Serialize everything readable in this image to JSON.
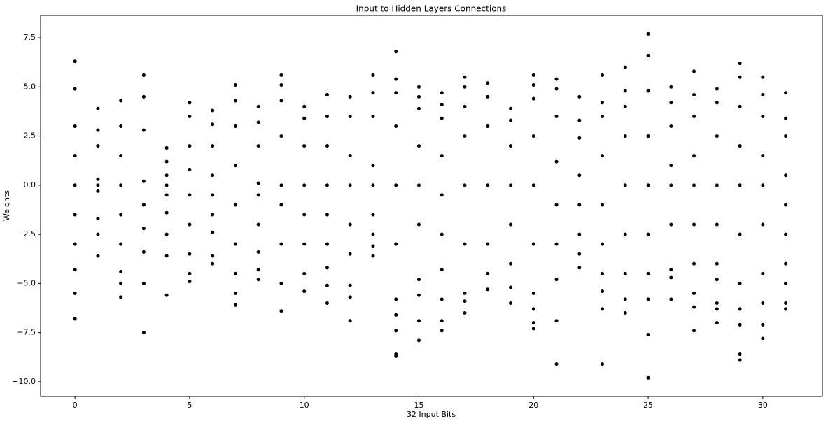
{
  "chart_data": {
    "type": "scatter",
    "title": "Input to Hidden Layers Connections",
    "xlabel": "32 Input Bits",
    "ylabel": "Weights",
    "color": "#000000",
    "xlim": [
      -1.5,
      32.6
    ],
    "ylim": [
      -10.75,
      8.64
    ],
    "xticks": [
      0,
      5,
      10,
      15,
      20,
      25,
      30
    ],
    "yticks": [
      {
        "value": -10,
        "label": "−10.0"
      },
      {
        "value": -7.5,
        "label": "−7.5"
      },
      {
        "value": -5,
        "label": "−5.0"
      },
      {
        "value": -2.5,
        "label": "−2.5"
      },
      {
        "value": 0,
        "label": "0.0"
      },
      {
        "value": 2.5,
        "label": "2.5"
      },
      {
        "value": 5,
        "label": "5.0"
      },
      {
        "value": 7.5,
        "label": "7.5"
      }
    ],
    "series": [
      {
        "x": 0,
        "values": [
          6.3,
          4.9,
          3.0,
          1.5,
          0,
          -1.5,
          -3,
          -4.3,
          -5.5,
          -6.8
        ]
      },
      {
        "x": 1,
        "values": [
          3.9,
          2.8,
          2.0,
          0.3,
          0,
          -0.3,
          -1.7,
          -2.5,
          -3.6
        ]
      },
      {
        "x": 2,
        "values": [
          4.3,
          3.0,
          1.5,
          0,
          -1.5,
          -3,
          -4.4,
          -5.0,
          -5.7
        ]
      },
      {
        "x": 3,
        "values": [
          5.6,
          4.5,
          2.8,
          0.2,
          -1,
          -2.2,
          -3.4,
          -5,
          -7.5
        ]
      },
      {
        "x": 4,
        "values": [
          1.9,
          1.2,
          0.5,
          0,
          -0.5,
          -1.4,
          -2.5,
          -3.6,
          -5.6
        ]
      },
      {
        "x": 5,
        "values": [
          4.2,
          3.5,
          2,
          0.8,
          -0.5,
          -2,
          -3.5,
          -4.5,
          -4.9
        ]
      },
      {
        "x": 6,
        "values": [
          3.8,
          3.1,
          2,
          0.5,
          -0.5,
          -1.5,
          -2.4,
          -3.6,
          -4
        ]
      },
      {
        "x": 7,
        "values": [
          5.1,
          4.3,
          3,
          1,
          -1,
          -3,
          -4.5,
          -5.5,
          -6.1
        ]
      },
      {
        "x": 8,
        "values": [
          4.0,
          3.2,
          2,
          0.1,
          -0.5,
          -2,
          -3.4,
          -4.3,
          -4.8
        ]
      },
      {
        "x": 9,
        "values": [
          5.6,
          5.1,
          4.3,
          2.5,
          0,
          -1,
          -3,
          -5,
          -6.4
        ]
      },
      {
        "x": 10,
        "values": [
          4.0,
          3.4,
          2,
          0,
          -1.5,
          -3,
          -4.5,
          -5.4
        ]
      },
      {
        "x": 11,
        "values": [
          4.6,
          3.5,
          2,
          0,
          -1.5,
          -3,
          -4.2,
          -5.1,
          -6.0
        ]
      },
      {
        "x": 12,
        "values": [
          4.5,
          3.5,
          1.5,
          0,
          -2,
          -3.5,
          -5.1,
          -5.7,
          -6.9
        ]
      },
      {
        "x": 13,
        "values": [
          5.6,
          4.7,
          3.5,
          1,
          0,
          -1.5,
          -2.5,
          -3.1,
          -3.6
        ]
      },
      {
        "x": 14,
        "values": [
          6.8,
          5.4,
          4.7,
          3,
          0,
          -3,
          -5.8,
          -6.6,
          -7.4,
          -8.6,
          -8.7
        ]
      },
      {
        "x": 15,
        "values": [
          5.0,
          4.5,
          3.9,
          2,
          0,
          -2,
          -4.8,
          -5.6,
          -6.9,
          -7.9
        ]
      },
      {
        "x": 16,
        "values": [
          4.7,
          4.1,
          3.4,
          1.5,
          -0.5,
          -2.5,
          -4.3,
          -5.8,
          -6.9,
          -7.4
        ]
      },
      {
        "x": 17,
        "values": [
          5.5,
          5.0,
          4.0,
          2.5,
          0,
          -3,
          -5.5,
          -5.9,
          -6.5
        ]
      },
      {
        "x": 18,
        "values": [
          5.2,
          4.5,
          3,
          0,
          -3,
          -4.5,
          -5.3
        ]
      },
      {
        "x": 19,
        "values": [
          3.9,
          3.3,
          2,
          0,
          -2,
          -4,
          -5.2,
          -6.0
        ]
      },
      {
        "x": 20,
        "values": [
          5.6,
          5.1,
          4.4,
          2.5,
          0,
          -3,
          -5.5,
          -6.3,
          -7.0,
          -7.3
        ]
      },
      {
        "x": 21,
        "values": [
          5.4,
          4.9,
          3.5,
          1.2,
          -1,
          -3,
          -4.8,
          -6.9,
          -9.1
        ]
      },
      {
        "x": 22,
        "values": [
          4.5,
          3.3,
          2.4,
          0.5,
          -1,
          -2.5,
          -3.5,
          -4.2
        ]
      },
      {
        "x": 23,
        "values": [
          5.6,
          4.2,
          3.5,
          1.5,
          -1,
          -3,
          -4.5,
          -5.4,
          -6.3,
          -9.1
        ]
      },
      {
        "x": 24,
        "values": [
          6.0,
          4.8,
          4.0,
          2.5,
          0,
          -2.5,
          -4.5,
          -5.8,
          -6.5
        ]
      },
      {
        "x": 25,
        "values": [
          7.7,
          6.6,
          4.8,
          2.5,
          0,
          -2.5,
          -4.5,
          -5.8,
          -7.6,
          -9.8
        ]
      },
      {
        "x": 26,
        "values": [
          5.0,
          4.2,
          3,
          1,
          0,
          -2,
          -4.3,
          -4.7,
          -5.8
        ]
      },
      {
        "x": 27,
        "values": [
          5.8,
          4.6,
          3.5,
          1.5,
          0,
          -2,
          -4,
          -5.5,
          -6.2,
          -7.4
        ]
      },
      {
        "x": 28,
        "values": [
          4.9,
          4.2,
          2.5,
          0,
          -2,
          -4,
          -4.8,
          -6.0,
          -6.3,
          -7.0
        ]
      },
      {
        "x": 29,
        "values": [
          6.2,
          5.5,
          4,
          2,
          0,
          -2.5,
          -5,
          -6.3,
          -7.1,
          -8.6,
          -8.9
        ]
      },
      {
        "x": 30,
        "values": [
          5.5,
          4.6,
          3.5,
          1.5,
          0,
          -2,
          -4.5,
          -6,
          -7.1,
          -7.8
        ]
      },
      {
        "x": 31,
        "values": [
          4.7,
          3.4,
          2.5,
          0.5,
          -1,
          -2.5,
          -4,
          -5,
          -6.0,
          -6.3
        ]
      }
    ]
  }
}
